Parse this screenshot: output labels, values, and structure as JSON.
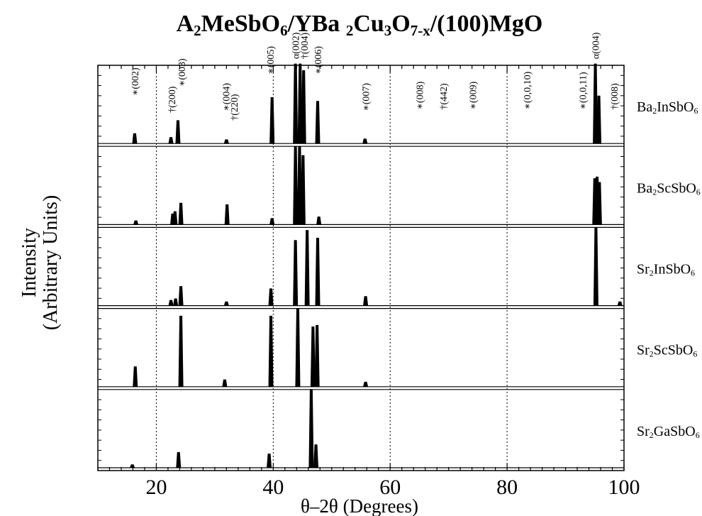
{
  "chart_data": {
    "type": "line",
    "title": "A₂MeSbO₆/YBa₂Cu₃O₇₋ₓ/(100)MgO",
    "title_parts": [
      {
        "t": "A",
        "s": "n"
      },
      {
        "t": "2",
        "s": "sub"
      },
      {
        "t": "MeSbO",
        "s": "n"
      },
      {
        "t": "6",
        "s": "sub"
      },
      {
        "t": "/YBa ",
        "s": "n"
      },
      {
        "t": "2",
        "s": "sub"
      },
      {
        "t": "Cu",
        "s": "n"
      },
      {
        "t": "3",
        "s": "sub"
      },
      {
        "t": "O",
        "s": "n"
      },
      {
        "t": "7-x",
        "s": "sub"
      },
      {
        "t": "/(100)MgO",
        "s": "n"
      }
    ],
    "xlabel": "θ–2θ (Degrees)",
    "ylabel_line1": "Intensity",
    "ylabel_line2": "(Arbitrary Units)",
    "xlim": [
      10,
      100
    ],
    "xticks_major": [
      20,
      40,
      60,
      80,
      100
    ],
    "xticks_minor_step": 2,
    "grid_x": [
      20,
      40,
      60,
      80
    ],
    "grid": "vertical dotted at major x ticks",
    "panels": [
      {
        "name": "Ba2InSbO6",
        "label_parts": [
          {
            "t": "Ba",
            "s": "n"
          },
          {
            "t": "2",
            "s": "sub"
          },
          {
            "t": "InSbO",
            "s": "n"
          },
          {
            "t": "6",
            "s": "sub"
          }
        ],
        "peaks": [
          [
            16.3,
            0.13
          ],
          [
            22.5,
            0.08
          ],
          [
            23.7,
            0.3
          ],
          [
            32.0,
            0.05
          ],
          [
            39.8,
            0.6
          ],
          [
            43.8,
            1.05
          ],
          [
            44.6,
            1.05
          ],
          [
            45.2,
            0.95
          ],
          [
            47.6,
            0.55
          ],
          [
            55.7,
            0.06
          ],
          [
            95.1,
            1.05
          ],
          [
            95.7,
            0.62
          ]
        ],
        "annotations": [
          {
            "x": 16.3,
            "text": "∗(002)",
            "y": 0.62
          },
          {
            "x": 22.6,
            "text": "†(200)",
            "y": 0.4
          },
          {
            "x": 24.3,
            "text": "∗(003)",
            "y": 0.74
          },
          {
            "x": 31.9,
            "text": "∗(004)",
            "y": 0.42
          },
          {
            "x": 33.3,
            "text": "†(220)",
            "y": 0.3
          },
          {
            "x": 39.5,
            "text": "∗(005)",
            "y": 0.9
          },
          {
            "x": 43.8,
            "text": "α(002)",
            "y": 1.1
          },
          {
            "x": 45.3,
            "text": "†(004)",
            "y": 1.1
          },
          {
            "x": 47.6,
            "text": "∗(006)",
            "y": 0.9
          },
          {
            "x": 55.8,
            "text": "∗(007)",
            "y": 0.42
          },
          {
            "x": 65.0,
            "text": "∗(008)",
            "y": 0.44
          },
          {
            "x": 69.1,
            "text": "†(442)",
            "y": 0.44
          },
          {
            "x": 74.1,
            "text": "∗(009)",
            "y": 0.44
          },
          {
            "x": 83.4,
            "text": "∗(0,0,10)",
            "y": 0.44
          },
          {
            "x": 92.9,
            "text": "∗(0,0,11)",
            "y": 0.44
          },
          {
            "x": 95.1,
            "text": "α(004)",
            "y": 1.1
          },
          {
            "x": 98.3,
            "text": "†(008)",
            "y": 0.44
          }
        ]
      },
      {
        "name": "Ba2ScSbO6",
        "label_parts": [
          {
            "t": "Ba",
            "s": "n"
          },
          {
            "t": "2",
            "s": "sub"
          },
          {
            "t": "ScSbO",
            "s": "n"
          },
          {
            "t": "6",
            "s": "sub"
          }
        ],
        "peaks": [
          [
            16.5,
            0.05
          ],
          [
            22.8,
            0.14
          ],
          [
            23.2,
            0.17
          ],
          [
            24.2,
            0.28
          ],
          [
            32.1,
            0.26
          ],
          [
            39.8,
            0.08
          ],
          [
            43.8,
            1.05
          ],
          [
            44.5,
            1.05
          ],
          [
            45.1,
            0.9
          ],
          [
            47.8,
            0.1
          ],
          [
            95.0,
            0.6
          ],
          [
            95.4,
            0.62
          ],
          [
            95.8,
            0.55
          ]
        ],
        "annotations": []
      },
      {
        "name": "Sr2InSbO6",
        "label_parts": [
          {
            "t": "Sr",
            "s": "n"
          },
          {
            "t": "2",
            "s": "sub"
          },
          {
            "t": "InSbO",
            "s": "n"
          },
          {
            "t": "6",
            "s": "sub"
          }
        ],
        "peaks": [
          [
            22.5,
            0.07
          ],
          [
            23.3,
            0.09
          ],
          [
            24.2,
            0.25
          ],
          [
            32.0,
            0.05
          ],
          [
            39.6,
            0.22
          ],
          [
            43.8,
            0.85
          ],
          [
            45.8,
            0.98
          ],
          [
            47.6,
            0.88
          ],
          [
            55.8,
            0.12
          ],
          [
            95.2,
            1.05
          ],
          [
            99.3,
            0.05
          ]
        ],
        "annotations": []
      },
      {
        "name": "Sr2ScSbO6",
        "label_parts": [
          {
            "t": "Sr",
            "s": "n"
          },
          {
            "t": "2",
            "s": "sub"
          },
          {
            "t": "ScSbO",
            "s": "n"
          },
          {
            "t": "6",
            "s": "sub"
          }
        ],
        "peaks": [
          [
            16.4,
            0.26
          ],
          [
            24.2,
            0.92
          ],
          [
            31.7,
            0.09
          ],
          [
            39.6,
            0.92
          ],
          [
            44.2,
            1.05
          ],
          [
            46.8,
            0.78
          ],
          [
            47.5,
            0.8
          ],
          [
            55.8,
            0.06
          ]
        ],
        "annotations": []
      },
      {
        "name": "Sr2GaSbO6",
        "label_parts": [
          {
            "t": "Sr",
            "s": "n"
          },
          {
            "t": "2",
            "s": "sub"
          },
          {
            "t": "GaSbO",
            "s": "n"
          },
          {
            "t": "6",
            "s": "sub"
          }
        ],
        "peaks": [
          [
            15.9,
            0.04
          ],
          [
            23.8,
            0.2
          ],
          [
            39.3,
            0.18
          ],
          [
            46.5,
            1.05
          ],
          [
            47.3,
            0.3
          ]
        ],
        "annotations": []
      }
    ]
  }
}
